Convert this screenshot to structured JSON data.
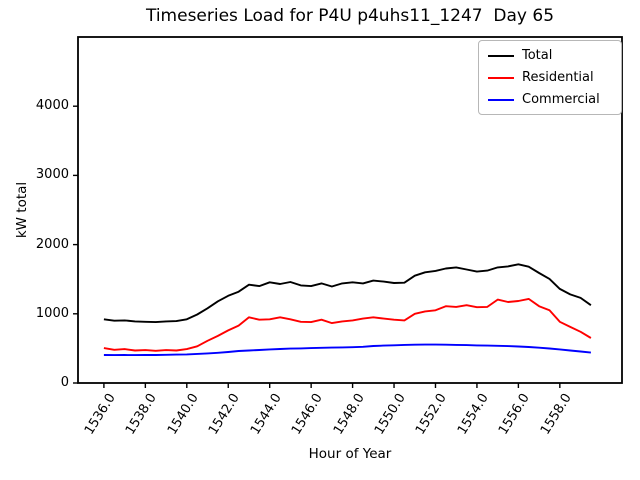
{
  "chart": {
    "title": "Timeseries Load for P4U p4uhs11_1247  Day 65",
    "xlabel": "Hour of Year",
    "ylabel": "kW total"
  },
  "legend": {
    "entries": [
      {
        "label": "Total",
        "color": "#000000"
      },
      {
        "label": "Residential",
        "color": "#ff0000"
      },
      {
        "label": "Commercial",
        "color": "#0000ff"
      }
    ],
    "position": "upper right"
  },
  "chart_data": {
    "type": "line",
    "title": "Timeseries Load for P4U p4uhs11_1247  Day 65",
    "xlabel": "Hour of Year",
    "ylabel": "kW total",
    "xlim": [
      1534.75,
      1561.0
    ],
    "ylim": [
      0,
      5000
    ],
    "grid": false,
    "legend_position": "upper right",
    "xticks": {
      "values": [
        1536,
        1538,
        1540,
        1542,
        1544,
        1546,
        1548,
        1550,
        1552,
        1554,
        1556,
        1558
      ],
      "labels": [
        "1536.0",
        "1538.0",
        "1540.0",
        "1542.0",
        "1544.0",
        "1546.0",
        "1548.0",
        "1550.0",
        "1552.0",
        "1554.0",
        "1556.0",
        "1558.0"
      ]
    },
    "yticks": {
      "values": [
        0,
        1000,
        2000,
        3000,
        4000
      ],
      "labels": [
        "0",
        "1000",
        "2000",
        "3000",
        "4000"
      ]
    },
    "x": [
      1536.0,
      1536.5,
      1537.0,
      1537.5,
      1538.0,
      1538.5,
      1539.0,
      1539.5,
      1540.0,
      1540.5,
      1541.0,
      1541.5,
      1542.0,
      1542.5,
      1543.0,
      1543.5,
      1544.0,
      1544.5,
      1545.0,
      1545.5,
      1546.0,
      1546.5,
      1547.0,
      1547.5,
      1548.0,
      1548.5,
      1549.0,
      1549.5,
      1550.0,
      1550.5,
      1551.0,
      1551.5,
      1552.0,
      1552.5,
      1553.0,
      1553.5,
      1554.0,
      1554.5,
      1555.0,
      1555.5,
      1556.0,
      1556.5,
      1557.0,
      1557.5,
      1558.0,
      1558.5,
      1559.0,
      1559.5
    ],
    "series": [
      {
        "name": "Total",
        "color": "#000000",
        "values": [
          920,
          900,
          905,
          890,
          885,
          880,
          890,
          895,
          920,
          990,
          1080,
          1180,
          1260,
          1320,
          1420,
          1400,
          1455,
          1430,
          1460,
          1410,
          1400,
          1440,
          1395,
          1440,
          1455,
          1440,
          1480,
          1465,
          1445,
          1450,
          1550,
          1600,
          1620,
          1655,
          1670,
          1640,
          1610,
          1625,
          1670,
          1685,
          1715,
          1680,
          1590,
          1505,
          1360,
          1280,
          1230,
          1125
        ]
      },
      {
        "name": "Residential",
        "color": "#ff0000",
        "values": [
          505,
          480,
          490,
          470,
          475,
          465,
          475,
          470,
          490,
          530,
          610,
          680,
          760,
          830,
          950,
          915,
          920,
          950,
          920,
          885,
          880,
          915,
          865,
          890,
          905,
          930,
          950,
          930,
          915,
          905,
          1000,
          1035,
          1050,
          1110,
          1100,
          1125,
          1095,
          1100,
          1205,
          1170,
          1185,
          1215,
          1110,
          1050,
          885,
          810,
          740,
          650
        ]
      },
      {
        "name": "Commercial",
        "color": "#0000ff",
        "values": [
          405,
          403,
          405,
          403,
          405,
          405,
          407,
          410,
          413,
          420,
          428,
          437,
          448,
          462,
          470,
          477,
          485,
          492,
          497,
          500,
          504,
          508,
          511,
          514,
          518,
          523,
          535,
          540,
          545,
          550,
          553,
          555,
          555,
          553,
          550,
          547,
          543,
          540,
          537,
          533,
          528,
          520,
          510,
          498,
          485,
          470,
          455,
          440
        ]
      }
    ]
  }
}
